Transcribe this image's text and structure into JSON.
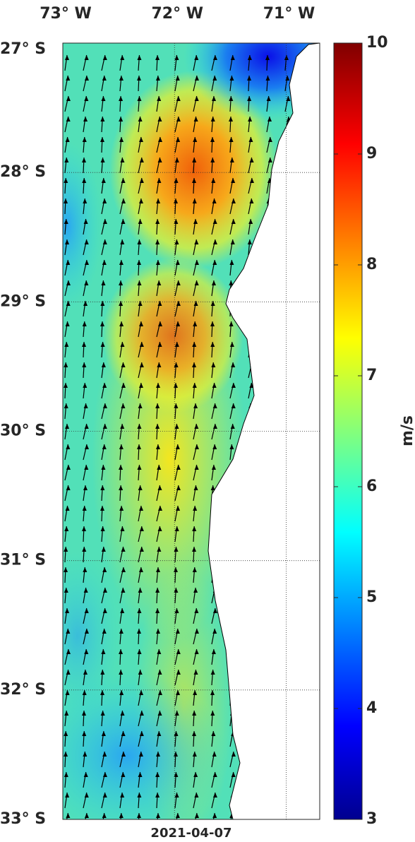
{
  "map": {
    "xlim": [
      -73,
      -70.7
    ],
    "ylim": [
      -33,
      -27
    ],
    "xticks": [
      {
        "value": -73,
        "label": "73° W"
      },
      {
        "value": -72,
        "label": "72° W"
      },
      {
        "value": -71,
        "label": "71° W"
      }
    ],
    "yticks": [
      {
        "value": -27,
        "label": "27° S"
      },
      {
        "value": -28,
        "label": "28° S"
      },
      {
        "value": -29,
        "label": "29° S"
      },
      {
        "value": -30,
        "label": "30° S"
      },
      {
        "value": -31,
        "label": "31° S"
      },
      {
        "value": -32,
        "label": "32° S"
      },
      {
        "value": -33,
        "label": "33° S"
      }
    ],
    "date": "2021-04-07",
    "colorbar": {
      "clim": [
        3,
        10
      ],
      "ticks": [
        3,
        4,
        5,
        6,
        7,
        8,
        9,
        10
      ],
      "label": "m/s",
      "colormap": "jet"
    }
  }
}
